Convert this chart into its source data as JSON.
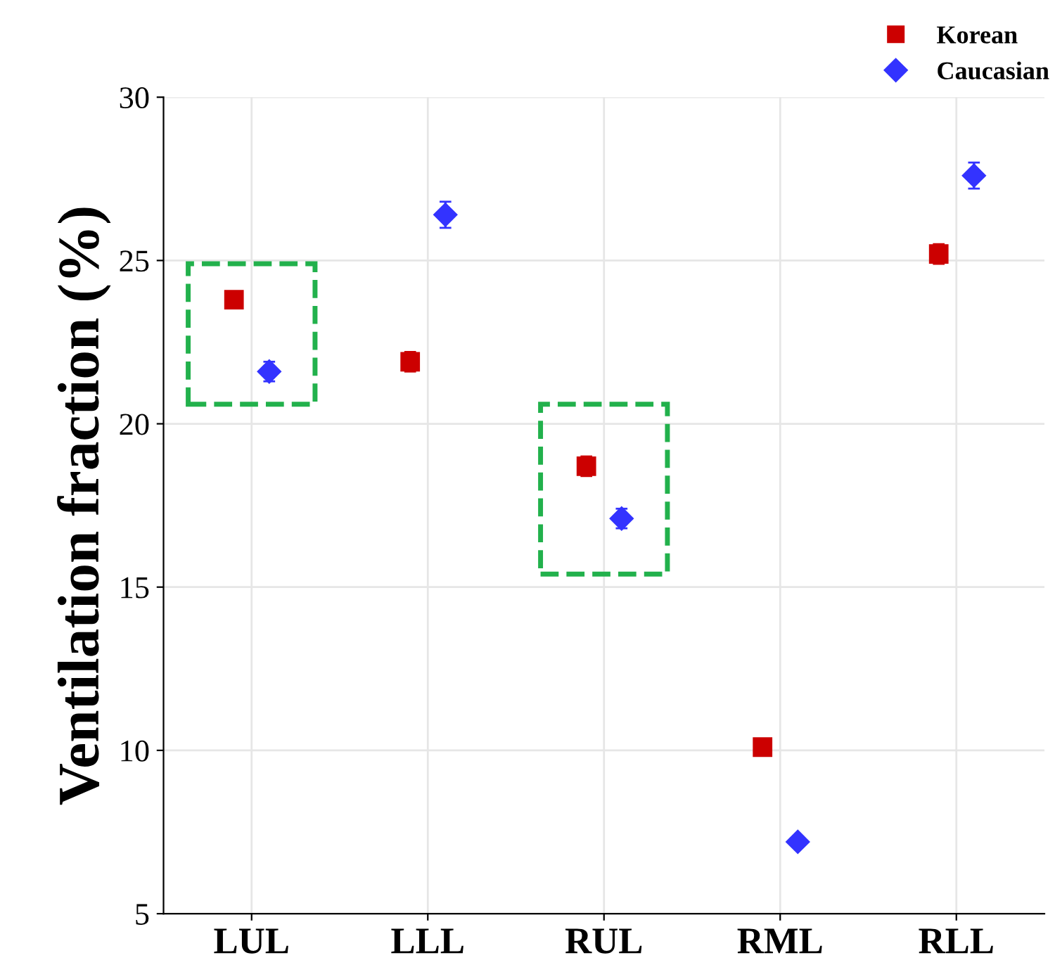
{
  "chart_data": {
    "type": "scatter",
    "ylabel": "Ventilation fraction (%)",
    "categories": [
      "LUL",
      "LLL",
      "RUL",
      "RML",
      "RLL"
    ],
    "series": [
      {
        "name": "Korean",
        "color": "#cc0000",
        "marker": "square",
        "values": [
          23.8,
          21.9,
          18.7,
          10.1,
          25.2
        ],
        "errors": [
          0.2,
          0.3,
          0.3,
          0.2,
          0.3
        ]
      },
      {
        "name": "Caucasian",
        "color": "#3333ff",
        "marker": "diamond",
        "values": [
          21.6,
          26.4,
          17.1,
          7.2,
          27.6
        ],
        "errors": [
          0.3,
          0.4,
          0.3,
          0.1,
          0.4
        ]
      }
    ],
    "ylim": [
      5,
      30
    ],
    "yticks": [
      5,
      10,
      15,
      20,
      25,
      30
    ],
    "grid": true,
    "legend": "top right"
  }
}
